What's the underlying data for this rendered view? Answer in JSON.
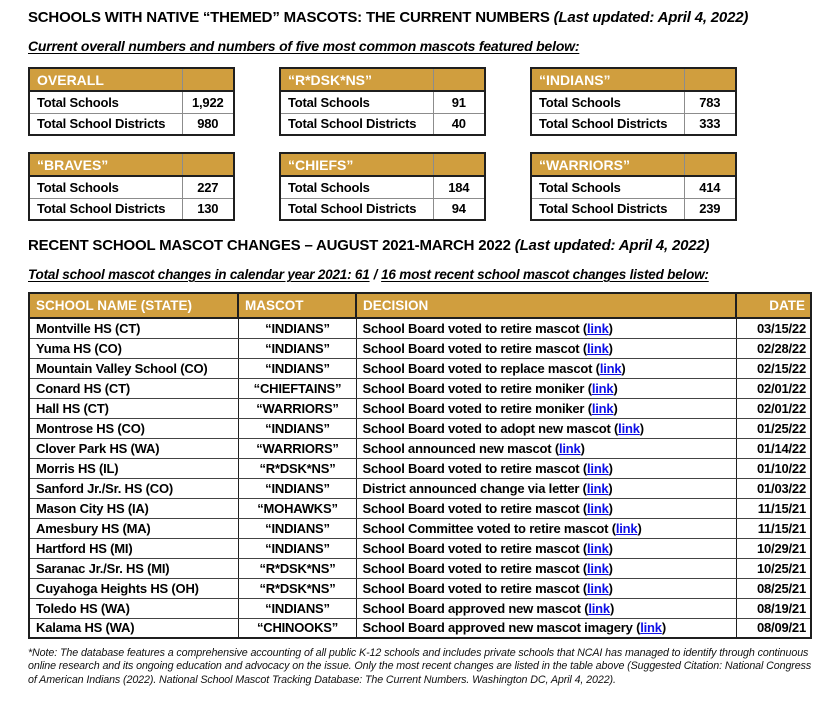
{
  "colors": {
    "header_gold": "#D09E3E",
    "link_blue": "#0F0FE8",
    "border_dark": "#1F1F1F",
    "border_gray": "#8C8C8C"
  },
  "header": {
    "title": "SCHOOLS WITH NATIVE “THEMED” MASCOTS: THE CURRENT NUMBERS",
    "updated": "(Last updated: April 4, 2022)",
    "subtitle": "Current overall numbers and numbers of five most common mascots featured below:"
  },
  "summary_tables": [
    {
      "key": "overall",
      "title": "OVERALL",
      "rows": [
        {
          "label": "Total Schools",
          "value": "1,922"
        },
        {
          "label": "Total School Districts",
          "value": "980"
        }
      ]
    },
    {
      "key": "rdskns",
      "title": "“R*DSK*NS”",
      "rows": [
        {
          "label": "Total Schools",
          "value": "91"
        },
        {
          "label": "Total School Districts",
          "value": "40"
        }
      ]
    },
    {
      "key": "indians",
      "title": "“INDIANS”",
      "rows": [
        {
          "label": "Total Schools",
          "value": "783"
        },
        {
          "label": "Total School Districts",
          "value": "333"
        }
      ]
    },
    {
      "key": "braves",
      "title": "“BRAVES”",
      "rows": [
        {
          "label": "Total Schools",
          "value": "227"
        },
        {
          "label": "Total School Districts",
          "value": "130"
        }
      ]
    },
    {
      "key": "chiefs",
      "title": "“CHIEFS”",
      "rows": [
        {
          "label": "Total Schools",
          "value": "184"
        },
        {
          "label": "Total School Districts",
          "value": "94"
        }
      ]
    },
    {
      "key": "warriors",
      "title": "“WARRIORS”",
      "rows": [
        {
          "label": "Total Schools",
          "value": "414"
        },
        {
          "label": "Total School Districts",
          "value": "239"
        }
      ]
    }
  ],
  "section2": {
    "title": "RECENT SCHOOL MASCOT CHANGES – AUGUST 2021-MARCH 2022",
    "updated": "(Last updated: April 4, 2022)",
    "subtitle_part1": "Total school mascot changes in calendar year 2021: 61",
    "subtitle_sep": "/",
    "subtitle_part2": "16 most recent school mascot changes listed below:"
  },
  "changes_table": {
    "headers": [
      "SCHOOL NAME (STATE)",
      "MASCOT",
      "DECISION",
      "DATE"
    ],
    "link_label": "link",
    "link_open": "(",
    "link_close": ")",
    "rows": [
      {
        "school": "Montville HS (CT)",
        "mascot": "“INDIANS”",
        "decision": "School Board voted to retire mascot",
        "date": "03/15/22"
      },
      {
        "school": "Yuma HS (CO)",
        "mascot": "“INDIANS”",
        "decision": "School Board voted to retire mascot",
        "date": "02/28/22"
      },
      {
        "school": "Mountain Valley School (CO)",
        "mascot": "“INDIANS”",
        "decision": "School Board voted to replace mascot",
        "date": "02/15/22"
      },
      {
        "school": "Conard HS (CT)",
        "mascot": "“CHIEFTAINS”",
        "decision": "School Board voted to retire moniker",
        "date": "02/01/22"
      },
      {
        "school": "Hall HS (CT)",
        "mascot": "“WARRIORS”",
        "decision": "School Board voted to retire moniker",
        "date": "02/01/22"
      },
      {
        "school": "Montrose HS (CO)",
        "mascot": "“INDIANS”",
        "decision": "School Board voted to adopt new mascot",
        "date": "01/25/22"
      },
      {
        "school": "Clover Park HS (WA)",
        "mascot": "“WARRIORS”",
        "decision": "School announced new mascot",
        "date": "01/14/22"
      },
      {
        "school": "Morris HS (IL)",
        "mascot": "“R*DSK*NS”",
        "decision": "School Board voted to retire mascot",
        "date": "01/10/22"
      },
      {
        "school": "Sanford Jr./Sr. HS (CO)",
        "mascot": "“INDIANS”",
        "decision": "District announced change via letter",
        "date": "01/03/22"
      },
      {
        "school": "Mason City HS (IA)",
        "mascot": "“MOHAWKS”",
        "decision": "School Board voted to retire mascot",
        "date": "11/15/21"
      },
      {
        "school": "Amesbury HS (MA)",
        "mascot": "“INDIANS”",
        "decision": "School Committee voted to retire mascot",
        "date": "11/15/21"
      },
      {
        "school": "Hartford HS (MI)",
        "mascot": "“INDIANS”",
        "decision": "School Board voted to retire mascot",
        "date": "10/29/21"
      },
      {
        "school": "Saranac Jr./Sr. HS (MI)",
        "mascot": "“R*DSK*NS”",
        "decision": "School Board voted to retire mascot",
        "date": "10/25/21"
      },
      {
        "school": "Cuyahoga Heights HS (OH)",
        "mascot": "“R*DSK*NS”",
        "decision": "School Board voted to retire mascot",
        "date": "08/25/21"
      },
      {
        "school": "Toledo HS (WA)",
        "mascot": "“INDIANS”",
        "decision": "School Board approved new mascot",
        "date": "08/19/21"
      },
      {
        "school": "Kalama HS (WA)",
        "mascot": "“CHINOOKS”",
        "decision": "School Board approved new mascot imagery",
        "date": "08/09/21"
      }
    ]
  },
  "footnote": "*Note: The database features a comprehensive accounting of all public K-12 schools and includes private schools that NCAI has managed to identify through continuous online research and its ongoing education and advocacy on the issue. Only the most recent changes are listed in the table above (Suggested Citation: National Congress of American Indians (2022). National School Mascot Tracking Database: The Current Numbers. Washington DC, April 4, 2022)."
}
